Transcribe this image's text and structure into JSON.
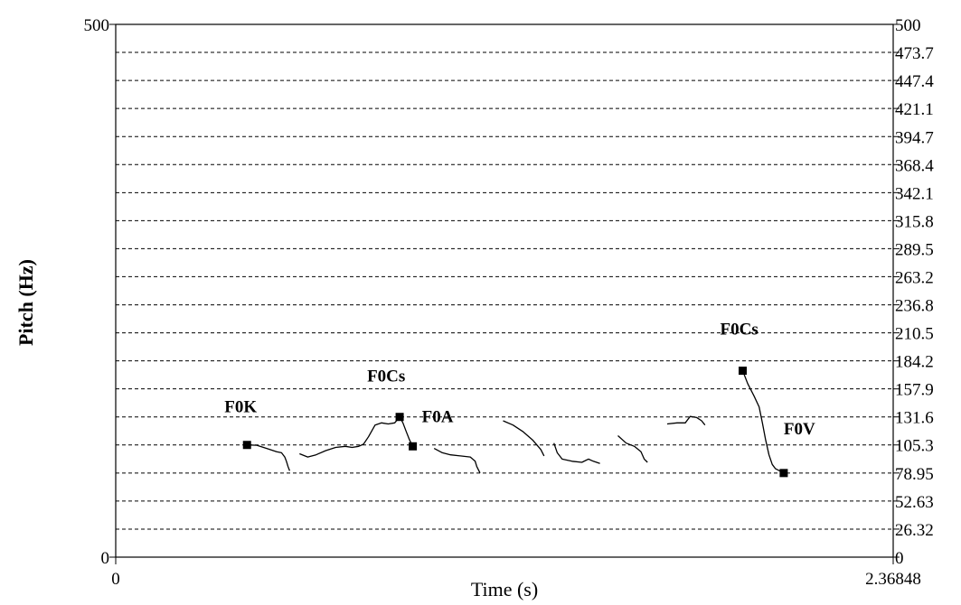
{
  "chart_data": {
    "type": "line",
    "xlabel": "Time (s)",
    "ylabel": "Pitch (Hz)",
    "xlim": [
      0,
      2.36848
    ],
    "ylim": [
      0,
      500
    ],
    "grid": true,
    "x_ticks": [
      "0",
      "2.36848"
    ],
    "y_left_ticks": [
      "500",
      "0"
    ],
    "y_right_ticks": [
      "500",
      "473.7",
      "447.4",
      "421.1",
      "394.7",
      "368.4",
      "342.1",
      "315.8",
      "289.5",
      "263.2",
      "236.8",
      "210.5",
      "184.2",
      "157.9",
      "131.6",
      "105.3",
      "78.95",
      "52.63",
      "26.32",
      "0"
    ],
    "gridlines_hz": [
      473.7,
      447.4,
      421.1,
      394.7,
      368.4,
      342.1,
      315.8,
      289.5,
      263.2,
      236.8,
      210.5,
      184.2,
      157.9,
      131.6,
      105.3,
      78.95,
      52.63,
      26.32
    ],
    "series": [
      {
        "points": [
          [
            0.4,
            105.3
          ],
          [
            0.43,
            105
          ],
          [
            0.46,
            102
          ],
          [
            0.49,
            99
          ],
          [
            0.505,
            98
          ],
          [
            0.515,
            94
          ],
          [
            0.52,
            90
          ],
          [
            0.525,
            85
          ],
          [
            0.53,
            81
          ]
        ]
      },
      {
        "points": [
          [
            0.56,
            97
          ],
          [
            0.585,
            94
          ],
          [
            0.61,
            96
          ],
          [
            0.64,
            100
          ],
          [
            0.67,
            103
          ],
          [
            0.7,
            104
          ],
          [
            0.72,
            103
          ],
          [
            0.74,
            104
          ],
          [
            0.755,
            106
          ],
          [
            0.77,
            113
          ],
          [
            0.79,
            124
          ],
          [
            0.81,
            126
          ],
          [
            0.83,
            125
          ],
          [
            0.85,
            126
          ],
          [
            0.865,
            131.6
          ]
        ]
      },
      {
        "points": [
          [
            0.865,
            131.6
          ],
          [
            0.875,
            126
          ],
          [
            0.885,
            118
          ],
          [
            0.895,
            110
          ],
          [
            0.905,
            104
          ]
        ]
      },
      {
        "points": [
          [
            0.97,
            102
          ],
          [
            0.995,
            98
          ],
          [
            1.02,
            96
          ],
          [
            1.05,
            95
          ],
          [
            1.08,
            94
          ],
          [
            1.095,
            90
          ],
          [
            1.1,
            85
          ],
          [
            1.11,
            79
          ]
        ]
      },
      {
        "points": [
          [
            1.18,
            128
          ],
          [
            1.21,
            124
          ],
          [
            1.24,
            118
          ],
          [
            1.27,
            110
          ],
          [
            1.295,
            101
          ],
          [
            1.305,
            95
          ]
        ]
      },
      {
        "points": [
          [
            1.335,
            107
          ],
          [
            1.345,
            98
          ],
          [
            1.36,
            92
          ],
          [
            1.39,
            90
          ],
          [
            1.42,
            89
          ],
          [
            1.44,
            92
          ],
          [
            1.455,
            90
          ],
          [
            1.475,
            88
          ]
        ]
      },
      {
        "points": [
          [
            1.53,
            114
          ],
          [
            1.555,
            107
          ],
          [
            1.58,
            104
          ],
          [
            1.6,
            99
          ],
          [
            1.61,
            92
          ],
          [
            1.62,
            89
          ]
        ]
      },
      {
        "points": [
          [
            1.68,
            125
          ],
          [
            1.71,
            126
          ],
          [
            1.735,
            126
          ],
          [
            1.75,
            132
          ],
          [
            1.77,
            131
          ],
          [
            1.785,
            128
          ],
          [
            1.795,
            124
          ]
        ]
      },
      {
        "points": [
          [
            1.91,
            175
          ],
          [
            1.925,
            163
          ],
          [
            1.945,
            151
          ],
          [
            1.96,
            141
          ],
          [
            1.97,
            126
          ],
          [
            1.98,
            110
          ],
          [
            1.99,
            96
          ],
          [
            2.0,
            87
          ],
          [
            2.01,
            83
          ],
          [
            2.035,
            78.95
          ]
        ]
      }
    ],
    "annotations": [
      {
        "text": "F0K",
        "x": 0.4,
        "y": 105.3
      },
      {
        "text": "F0Cs",
        "x": 0.865,
        "y": 131.6
      },
      {
        "text": "F0A",
        "x": 0.905,
        "y": 104
      },
      {
        "text": "F0Cs",
        "x": 1.91,
        "y": 175
      },
      {
        "text": "F0V",
        "x": 2.035,
        "y": 78.95
      }
    ]
  }
}
